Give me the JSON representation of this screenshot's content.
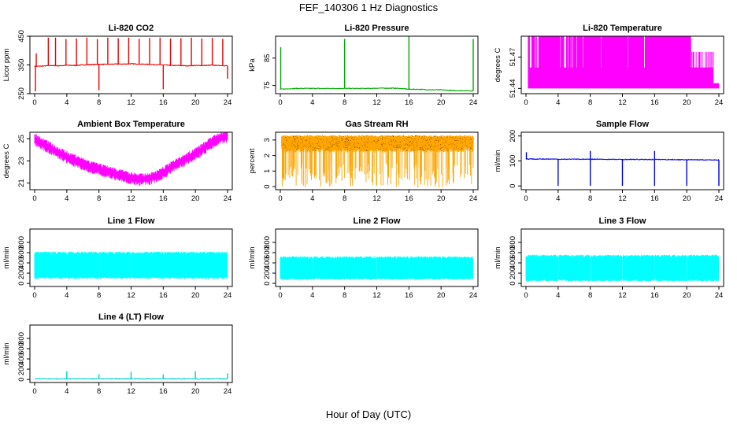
{
  "suptitle": "FEF_140306  1 Hz Diagnostics",
  "xlabel": "Hour of Day (UTC)",
  "chart_data": [
    {
      "type": "line",
      "title": "Li-820 CO2",
      "ylabel": "Licor ppm",
      "xlim": [
        0,
        24
      ],
      "ylim": [
        250,
        450
      ],
      "xticks": [
        0,
        4,
        8,
        12,
        16,
        20,
        24
      ],
      "yticks": [
        250,
        350,
        450
      ],
      "color": "#ee0000",
      "series": [
        {
          "x": [
            0,
            1,
            2,
            3,
            4,
            5,
            6,
            7,
            8,
            9,
            10,
            11,
            12,
            13,
            14,
            15,
            16,
            17,
            18,
            19,
            20,
            21,
            22,
            23,
            24
          ],
          "y": [
            345,
            346,
            348,
            347,
            349,
            348,
            350,
            351,
            352,
            352,
            353,
            353,
            354,
            353,
            352,
            351,
            350,
            348,
            348,
            347,
            348,
            348,
            349,
            348,
            347
          ]
        }
      ],
      "spikes_up": [
        [
          0.2,
          390
        ],
        [
          1.7,
          445
        ],
        [
          2.6,
          445
        ],
        [
          3.9,
          440
        ],
        [
          5.2,
          442
        ],
        [
          6.5,
          445
        ],
        [
          7.8,
          440
        ],
        [
          9.1,
          445
        ],
        [
          10.4,
          443
        ],
        [
          11.7,
          445
        ],
        [
          13.0,
          441
        ],
        [
          14.3,
          444
        ],
        [
          15.6,
          445
        ],
        [
          16.9,
          442
        ],
        [
          18.2,
          443
        ],
        [
          19.5,
          445
        ],
        [
          20.8,
          442
        ],
        [
          22.1,
          444
        ],
        [
          23.4,
          441
        ]
      ],
      "spikes_down": [
        [
          0.1,
          258
        ],
        [
          8.0,
          262
        ],
        [
          16.0,
          265
        ],
        [
          24.0,
          302
        ]
      ]
    },
    {
      "type": "line",
      "title": "Li-820 Pressure",
      "ylabel": "kPa",
      "xlim": [
        0,
        24
      ],
      "ylim": [
        72,
        93
      ],
      "xticks": [
        0,
        4,
        8,
        12,
        16,
        20,
        24
      ],
      "yticks": [
        75,
        85
      ],
      "color": "#00aa00",
      "series": [
        {
          "x": [
            0,
            1,
            2,
            3,
            4,
            5,
            6,
            7,
            8,
            9,
            10,
            11,
            12,
            13,
            14,
            15,
            16,
            17,
            18,
            19,
            20,
            21,
            22,
            23,
            24
          ],
          "y": [
            73.6,
            73.8,
            73.9,
            73.9,
            73.9,
            73.9,
            73.9,
            73.9,
            73.9,
            73.9,
            73.9,
            73.9,
            74.0,
            74.0,
            74.0,
            73.9,
            73.6,
            73.6,
            73.5,
            73.4,
            73.4,
            73.2,
            73.1,
            73.1,
            73.0
          ]
        }
      ],
      "spikes_up": [
        [
          0.05,
          89
        ],
        [
          8.0,
          92
        ],
        [
          16.0,
          93
        ],
        [
          24.0,
          92
        ]
      ],
      "spikes_down": []
    },
    {
      "type": "area",
      "title": "Li-820 Temperature",
      "ylabel": "degrees C",
      "xlim": [
        0,
        24
      ],
      "ylim": [
        51.435,
        51.49
      ],
      "xticks": [
        0,
        4,
        8,
        12,
        16,
        20,
        24
      ],
      "yticks": [
        51.44,
        51.47
      ],
      "color": "#ff00ff"
    },
    {
      "type": "line",
      "title": "Ambient Box Temperature",
      "ylabel": "degrees C",
      "xlim": [
        0,
        24
      ],
      "ylim": [
        20.4,
        25.6
      ],
      "xticks": [
        0,
        4,
        8,
        12,
        16,
        20,
        24
      ],
      "yticks": [
        21,
        23,
        25
      ],
      "color": "#ff00ff",
      "series": [
        {
          "x": [
            0,
            1,
            2,
            3,
            4,
            5,
            6,
            7,
            8,
            9,
            10,
            11,
            12,
            13,
            14,
            15,
            16,
            17,
            18,
            19,
            20,
            21,
            22,
            23,
            24
          ],
          "y": [
            25.0,
            24.6,
            24.2,
            23.8,
            23.4,
            23.1,
            22.8,
            22.5,
            22.3,
            22.1,
            21.9,
            21.7,
            21.5,
            21.4,
            21.4,
            21.6,
            22.0,
            22.5,
            22.9,
            23.3,
            23.7,
            24.2,
            24.7,
            25.1,
            25.3
          ]
        }
      ],
      "noise": 0.5
    },
    {
      "type": "scatter",
      "title": "Gas Stream RH",
      "ylabel": "percent",
      "xlim": [
        0,
        24
      ],
      "ylim": [
        -0.2,
        3.5
      ],
      "xticks": [
        0,
        4,
        8,
        12,
        16,
        20,
        24
      ],
      "yticks": [
        0,
        1,
        2,
        3
      ],
      "color": "#ffa500",
      "band": [
        2.2,
        3.3
      ]
    },
    {
      "type": "line",
      "title": "Sample Flow",
      "ylabel": "ml/min",
      "xlim": [
        0,
        24
      ],
      "ylim": [
        -15,
        215
      ],
      "xticks": [
        0,
        4,
        8,
        12,
        16,
        20,
        24
      ],
      "yticks": [
        0,
        100,
        200
      ],
      "color": "#0000ee",
      "series": [
        {
          "x": [
            0,
            4,
            8,
            12,
            16,
            20,
            24
          ],
          "y": [
            108,
            107,
            107,
            106,
            106,
            105,
            104
          ]
        }
      ],
      "spikes_up": [
        [
          0.05,
          135
        ],
        [
          8.0,
          140
        ],
        [
          16.0,
          140
        ]
      ],
      "spikes_down": [
        [
          4.0,
          0
        ],
        [
          8.0,
          0
        ],
        [
          12.0,
          0
        ],
        [
          16.0,
          0
        ],
        [
          20.0,
          0
        ],
        [
          24.0,
          0
        ]
      ]
    },
    {
      "type": "area",
      "title": "Line 1 Flow",
      "ylabel": "ml/min",
      "xlim": [
        0,
        24
      ],
      "ylim": [
        -60,
        1060
      ],
      "xticks": [
        0,
        4,
        8,
        12,
        16,
        20,
        24
      ],
      "yticks": [
        0,
        200,
        400,
        600,
        800
      ],
      "color": "#00ffff",
      "band": [
        90,
        620
      ]
    },
    {
      "type": "area",
      "title": "Line 2 Flow",
      "ylabel": "ml/min",
      "xlim": [
        0,
        24
      ],
      "ylim": [
        -60,
        1060
      ],
      "xticks": [
        0,
        4,
        8,
        12,
        16,
        20,
        24
      ],
      "yticks": [
        0,
        200,
        400,
        600,
        800
      ],
      "color": "#00ffff",
      "band": [
        70,
        530
      ]
    },
    {
      "type": "area",
      "title": "Line 3 Flow",
      "ylabel": "ml/min",
      "xlim": [
        0,
        24
      ],
      "ylim": [
        -60,
        1060
      ],
      "xticks": [
        0,
        4,
        8,
        12,
        16,
        20,
        24
      ],
      "yticks": [
        0,
        200,
        400,
        600,
        800
      ],
      "color": "#00ffff",
      "band": [
        40,
        560
      ]
    },
    {
      "type": "line",
      "title": "Line 4 (LT) Flow",
      "ylabel": "ml/min",
      "xlim": [
        0,
        24
      ],
      "ylim": [
        -60,
        1060
      ],
      "xticks": [
        0,
        4,
        8,
        12,
        16,
        20,
        24
      ],
      "yticks": [
        0,
        200,
        400,
        600,
        800
      ],
      "color": "#00d0d0",
      "series": [
        {
          "x": [
            0,
            24
          ],
          "y": [
            12,
            12
          ]
        }
      ],
      "spikes_up": [
        [
          4.0,
          160
        ],
        [
          8.0,
          100
        ],
        [
          12.0,
          150
        ],
        [
          16.0,
          100
        ],
        [
          20.0,
          160
        ],
        [
          24.0,
          120
        ]
      ],
      "spikes_down": []
    }
  ]
}
